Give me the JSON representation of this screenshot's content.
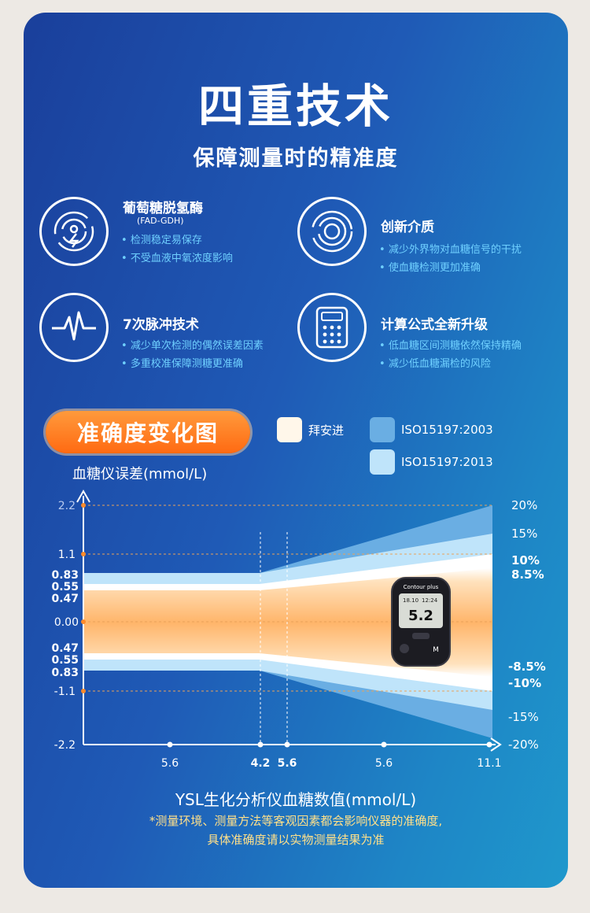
{
  "header": {
    "title": "四重技术",
    "subtitle": "保障测量时的精准度"
  },
  "features": [
    {
      "title": "葡萄糖脱氢酶",
      "sub": "(FAD-GDH)",
      "bullets": [
        "检测稳定易保存",
        "不受血液中氧浓度影响"
      ],
      "icon": "enzyme-icon"
    },
    {
      "title": "创新介质",
      "sub": "",
      "bullets": [
        "减少外界物对血糖信号的干扰",
        "使血糖检测更加准确"
      ],
      "icon": "medium-icon"
    },
    {
      "title": "7次脉冲技术",
      "sub": "",
      "bullets": [
        "减少单次检测的偶然误差因素",
        "多重校准保障测糖更准确"
      ],
      "icon": "pulse-icon"
    },
    {
      "title": "计算公式全新升级",
      "sub": "",
      "bullets": [
        "低血糖区间测糖依然保持精确",
        "减少低血糖漏检的风险"
      ],
      "icon": "calculator-icon"
    }
  ],
  "chart_badge": "准确度变化图",
  "legend": [
    {
      "label": "拜安进",
      "color": "#fff7ea"
    },
    {
      "label": "ISO15197:2003",
      "color": "#6aaee3"
    },
    {
      "label": "ISO15197:2013",
      "color": "#bfe4fa"
    }
  ],
  "chart_data": {
    "type": "area",
    "ylabel": "血糖仪误差(mmol/L)",
    "xlabel": "YSL生化分析仪血糖数值(mmol/L)",
    "y_ticks_left": [
      "2.2",
      "1.1",
      "0.83",
      "0.55",
      "0.47",
      "0.00",
      "0.47",
      "0.55",
      "0.83",
      "-1.1",
      "-2.2"
    ],
    "x_ticks": [
      "5.6",
      "4.2",
      "5.6",
      "5.6",
      "11.1"
    ],
    "right_labels": [
      "20%",
      "15%",
      "10%",
      "8.5%",
      "-8.5%",
      "-10%",
      "-15%",
      "-20%"
    ],
    "series": [
      {
        "name": "拜安进",
        "left_bound": "±0.47 mmol/L",
        "right_bound": "±8.5%"
      },
      {
        "name": "ISO15197:2013",
        "left_bound": "±0.83 mmol/L",
        "right_bound": "±15%"
      },
      {
        "name": "ISO15197:2003",
        "left_bound": "±0.83 mmol/L",
        "right_bound": "±20%"
      }
    ],
    "breakpoint_x": [
      "4.2",
      "5.6"
    ]
  },
  "device": {
    "brand": "Contour plus",
    "reading": "5.2",
    "date": "18.10",
    "time": "12:24",
    "button": "M"
  },
  "footnote": [
    "*测量环境、测量方法等客观因素都会影响仪器的准确度,",
    "具体准确度请以实物测量结果为准"
  ],
  "colors": {
    "accent_orange": "#ff7a1a",
    "bullet_blue": "#6fd0ff",
    "grid_orange": "#e8a25a"
  }
}
